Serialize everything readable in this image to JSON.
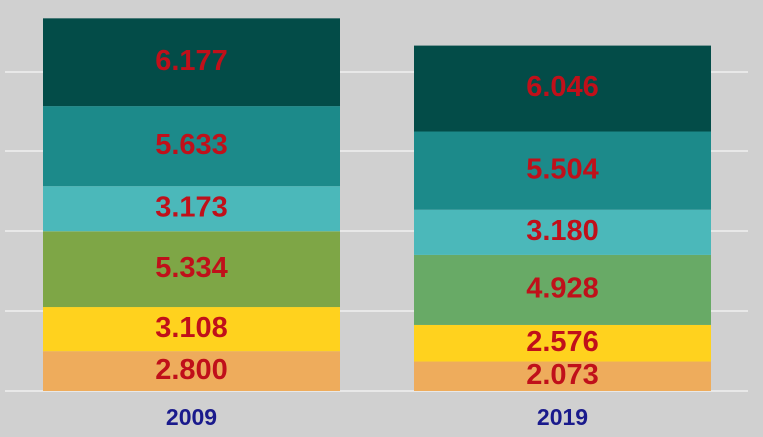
{
  "chart_data": {
    "type": "bar",
    "stacked": true,
    "categories": [
      "2009",
      "2019"
    ],
    "series": [
      {
        "color": "#eeac5c",
        "values": [
          2.8,
          2.073
        ],
        "labels": [
          "2.800",
          "2.073"
        ]
      },
      {
        "color": "#ffd21e",
        "values": [
          3.108,
          2.576
        ],
        "labels": [
          "3.108",
          "2.576"
        ]
      },
      {
        "color": "#7ea646",
        "values": [
          5.334,
          4.928
        ],
        "labels": [
          "5.334",
          "4.928"
        ],
        "colors": [
          "#7ea646",
          "#68aa66"
        ]
      },
      {
        "color": "#4bb8ba",
        "values": [
          3.173,
          3.18
        ],
        "labels": [
          "3.173",
          "3.180"
        ]
      },
      {
        "color": "#1c8a8a",
        "values": [
          5.633,
          5.504
        ],
        "labels": [
          "5.633",
          "5.504"
        ]
      },
      {
        "color": "#034c48",
        "values": [
          6.177,
          6.046
        ],
        "labels": [
          "6.177",
          "6.046"
        ]
      }
    ],
    "grid": true,
    "colors": {
      "background": "#d0d0d0",
      "gridline": "#ffffff",
      "value_label": "#c0101a",
      "category_label": "#1a1a8c"
    }
  }
}
